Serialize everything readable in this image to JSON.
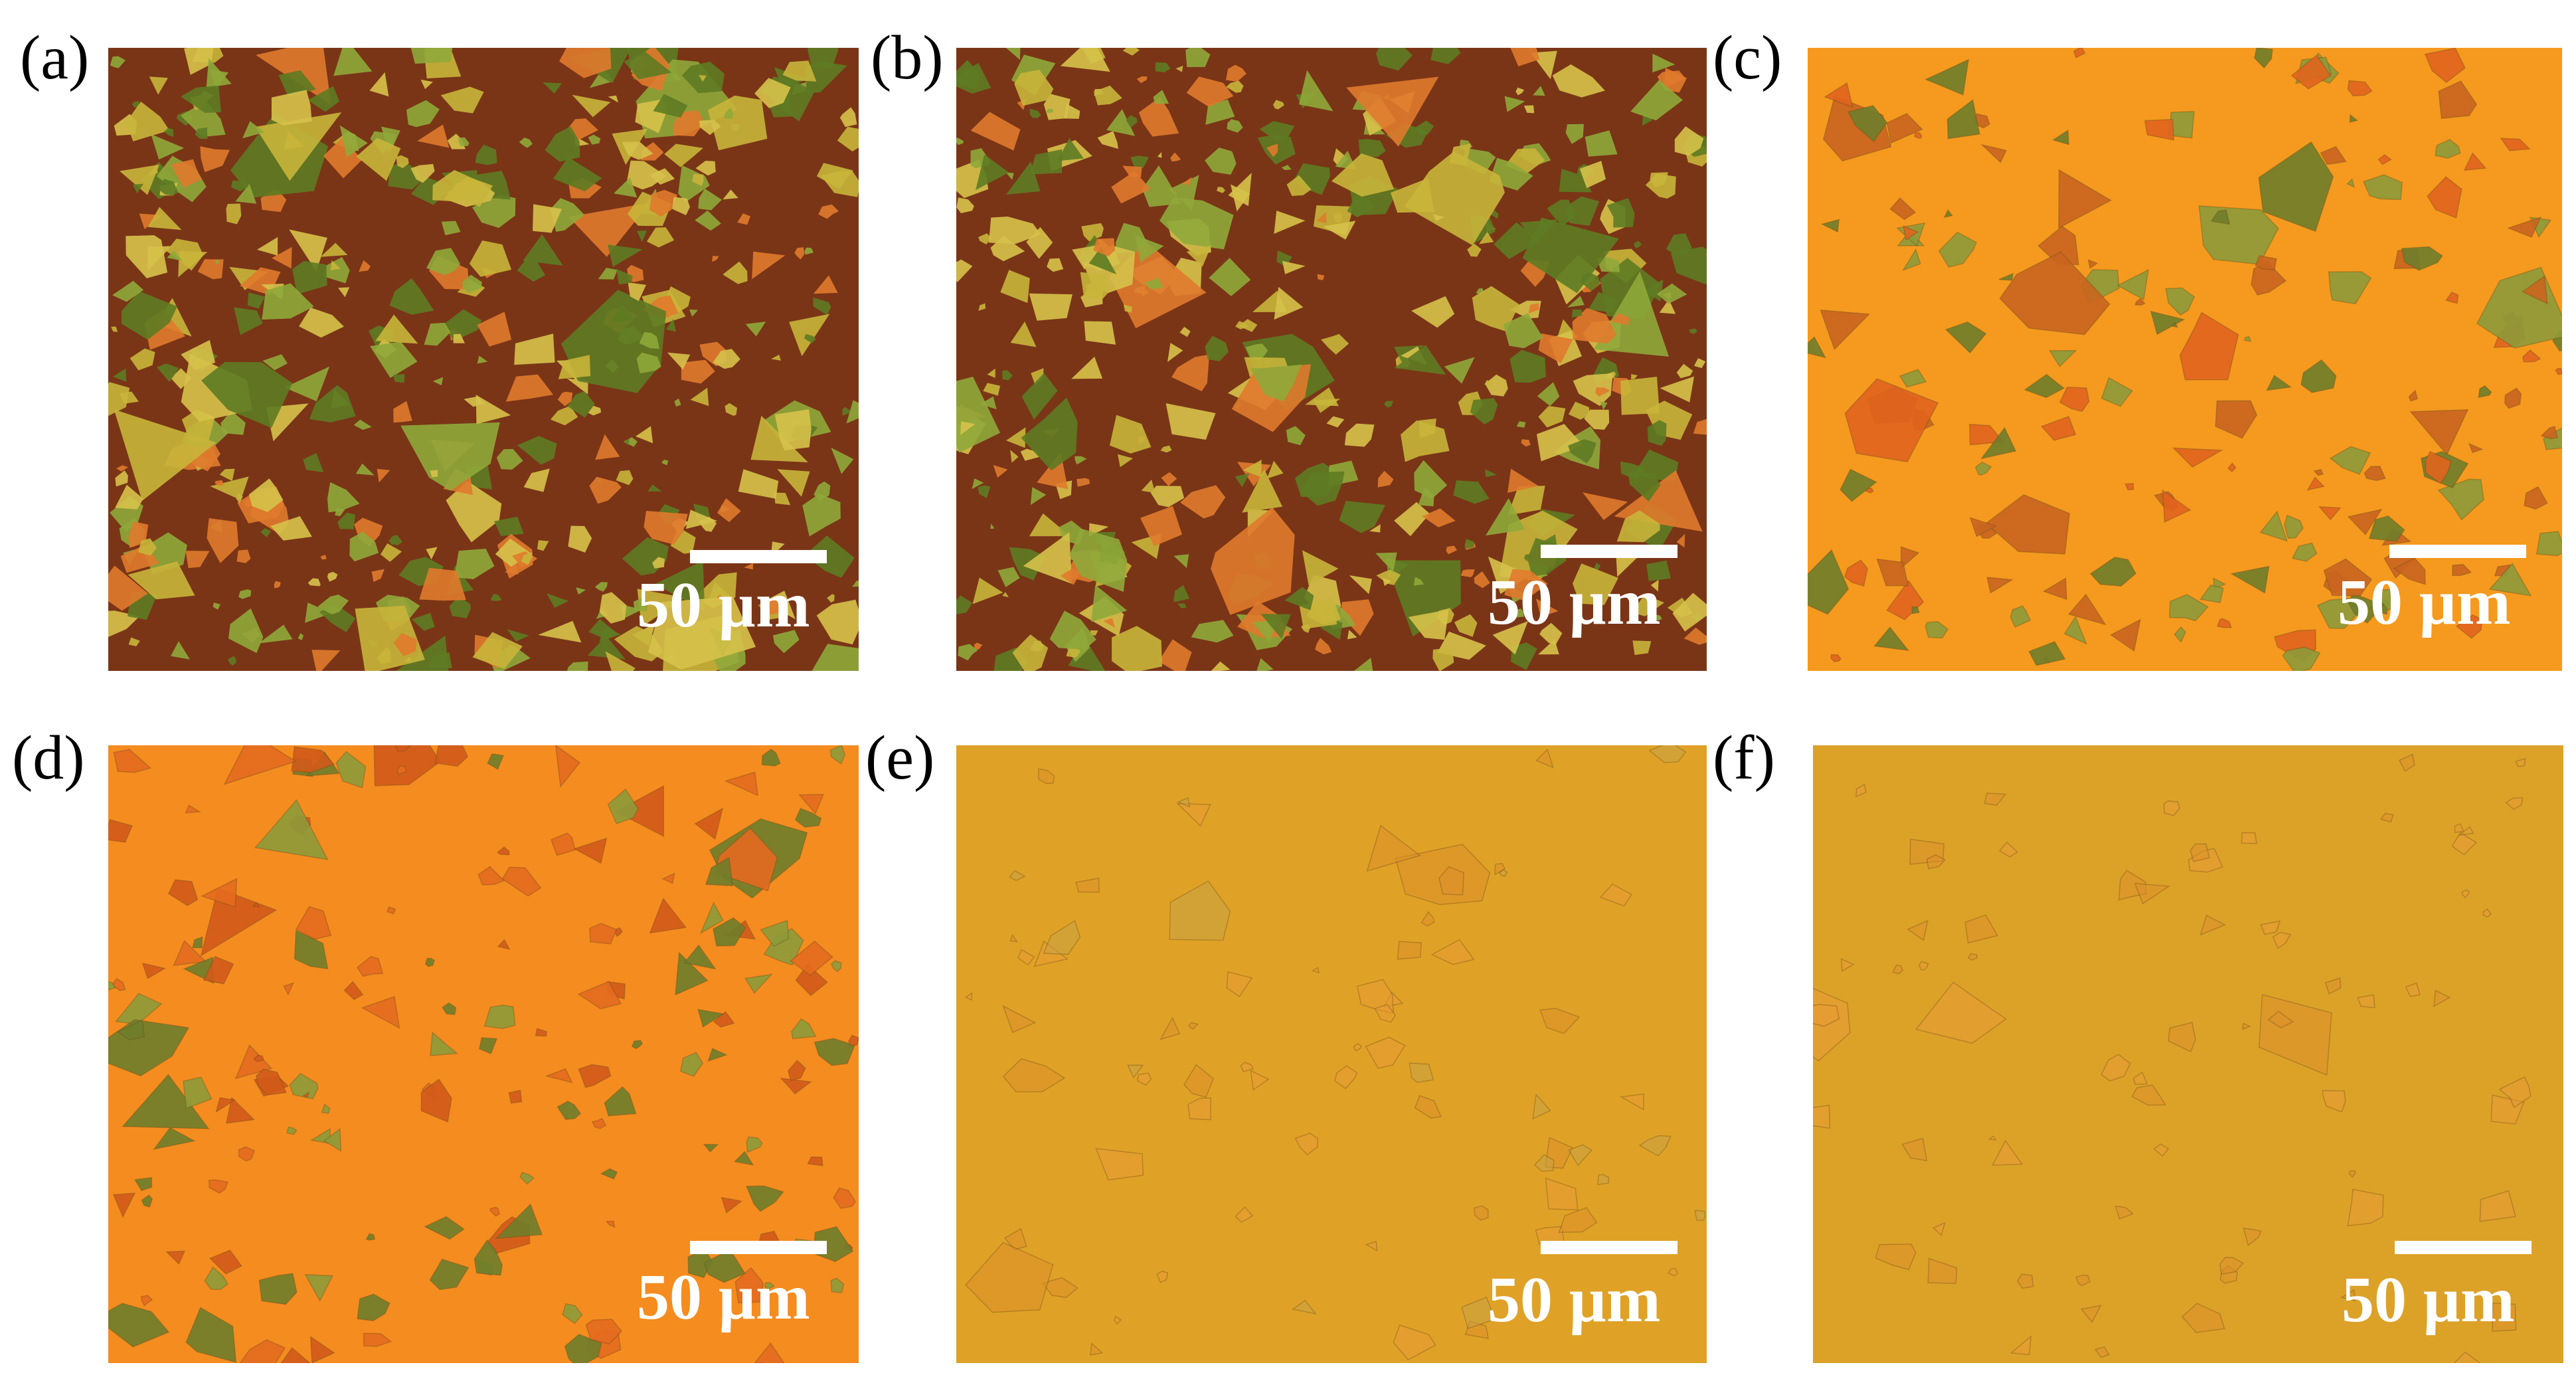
{
  "figure": {
    "panels": [
      {
        "id": "a",
        "label": "(a)",
        "scale_bar": "50 µm",
        "substrate_color": "#7a3517",
        "flake_colors": [
          "#c8b53a",
          "#8fa83a",
          "#5e7b22",
          "#e07a2c",
          "#d6c24a"
        ],
        "flake_density": "high"
      },
      {
        "id": "b",
        "label": "(b)",
        "scale_bar": "50 µm",
        "substrate_color": "#7a3517",
        "flake_colors": [
          "#c8b53a",
          "#8fa83a",
          "#5e7b22",
          "#e07a2c",
          "#d6c24a"
        ],
        "flake_density": "high"
      },
      {
        "id": "c",
        "label": "(c)",
        "scale_bar": "50 µm",
        "substrate_color": "#f59a1e",
        "flake_colors": [
          "#e0641e",
          "#c9651f",
          "#8d9a3a",
          "#6f7d2a"
        ],
        "flake_density": "medium"
      },
      {
        "id": "d",
        "label": "(d)",
        "scale_bar": "50 µm",
        "substrate_color": "#f58c1f",
        "flake_colors": [
          "#e36a1f",
          "#d15a1a",
          "#8d9a3a",
          "#6f7d2a"
        ],
        "flake_density": "medium"
      },
      {
        "id": "e",
        "label": "(e)",
        "scale_bar": "50 µm",
        "substrate_color": "#dfa226",
        "flake_colors": [
          "#e79a33",
          "#dc8f2a",
          "#c9a345"
        ],
        "flake_density": "low"
      },
      {
        "id": "f",
        "label": "(f)",
        "scale_bar": "50 µm",
        "substrate_color": "#dca228",
        "flake_colors": [
          "#e79a33",
          "#dc8f2a"
        ],
        "flake_density": "low"
      }
    ]
  }
}
